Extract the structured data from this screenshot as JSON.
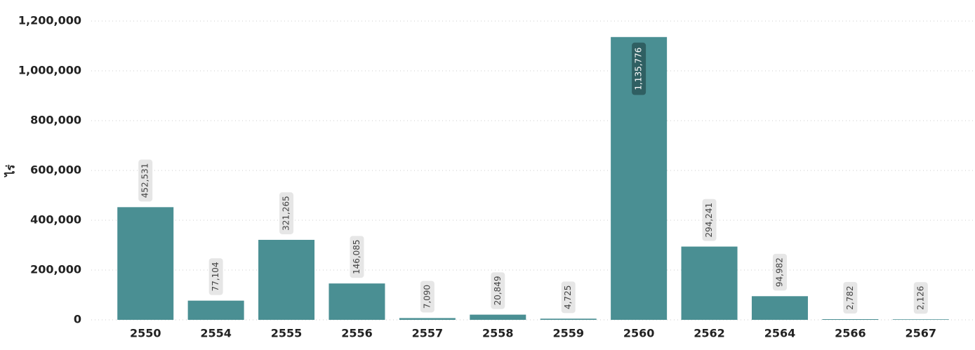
{
  "chart_data": {
    "type": "bar",
    "y_label": "ไร่",
    "categories": [
      "2550",
      "2554",
      "2555",
      "2556",
      "2557",
      "2558",
      "2559",
      "2560",
      "2562",
      "2564",
      "2566",
      "2567"
    ],
    "values": [
      452531,
      77104,
      321265,
      146085,
      7090,
      20849,
      4725,
      1135776,
      294241,
      94982,
      2782,
      2126
    ],
    "value_labels": [
      "452,531",
      "77,104",
      "321,265",
      "146,085",
      "7,090",
      "20,849",
      "4,725",
      "1,135,776",
      "294,241",
      "94,982",
      "2,782",
      "2,126"
    ],
    "color": "#4a8f93",
    "ylim": [
      0,
      1200000
    ],
    "yticks": [
      0,
      {
        "value": 200000,
        "label": "200,000"
      },
      {
        "value": 400000,
        "label": "400,000"
      },
      {
        "value": 600000,
        "label": "600,000"
      },
      {
        "value": 800000,
        "label": "800,000"
      },
      {
        "value": 1000000,
        "label": "1,000,000"
      },
      {
        "value": 1200000,
        "label": "1,200,000"
      }
    ],
    "grid": true
  }
}
